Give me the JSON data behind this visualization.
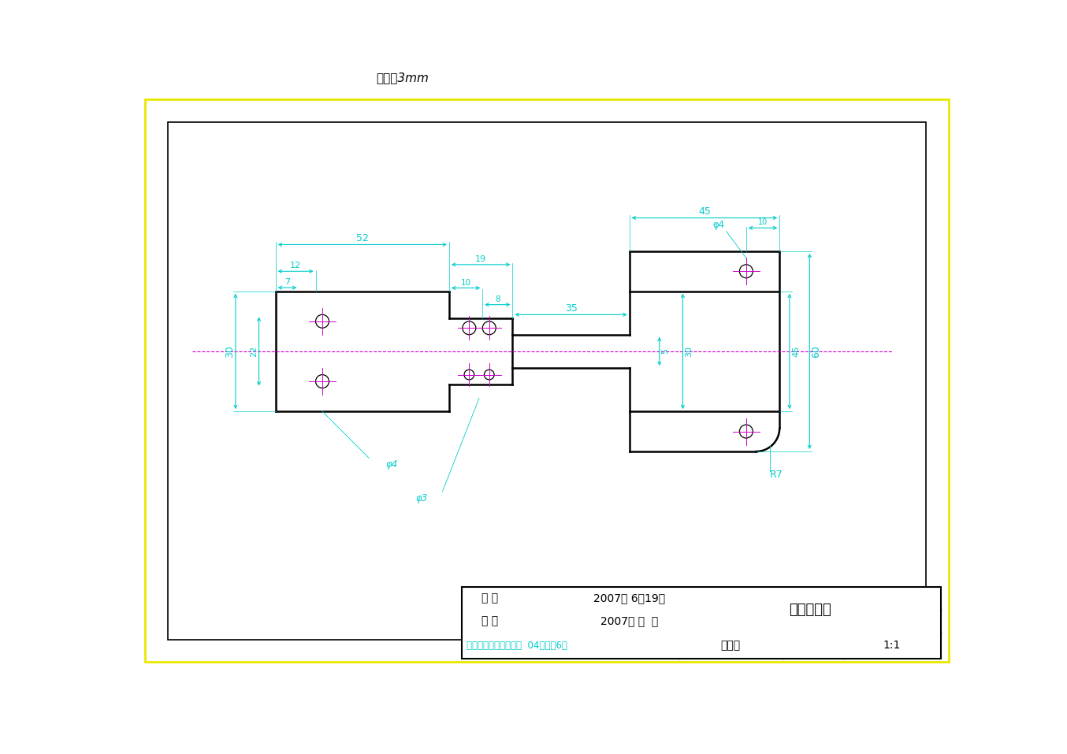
{
  "bg_color": "#ffffff",
  "outer_border_color": "#e8e800",
  "line_color": "#000000",
  "dim_color": "#00cccc",
  "center_color": "#cc00cc",
  "title_text": "厚度为3mm",
  "part_title": "机械手支座",
  "draw_date": "2007年 6月19日",
  "check_date": "2007年 月  日",
  "institution": "河北工程大学机电学院  04级机制6班",
  "material": "铝合金",
  "scale": "1:1",
  "draw_label": "制 图",
  "check_label": "审 核",
  "OX": 230,
  "OY": 430,
  "S": 5.5
}
